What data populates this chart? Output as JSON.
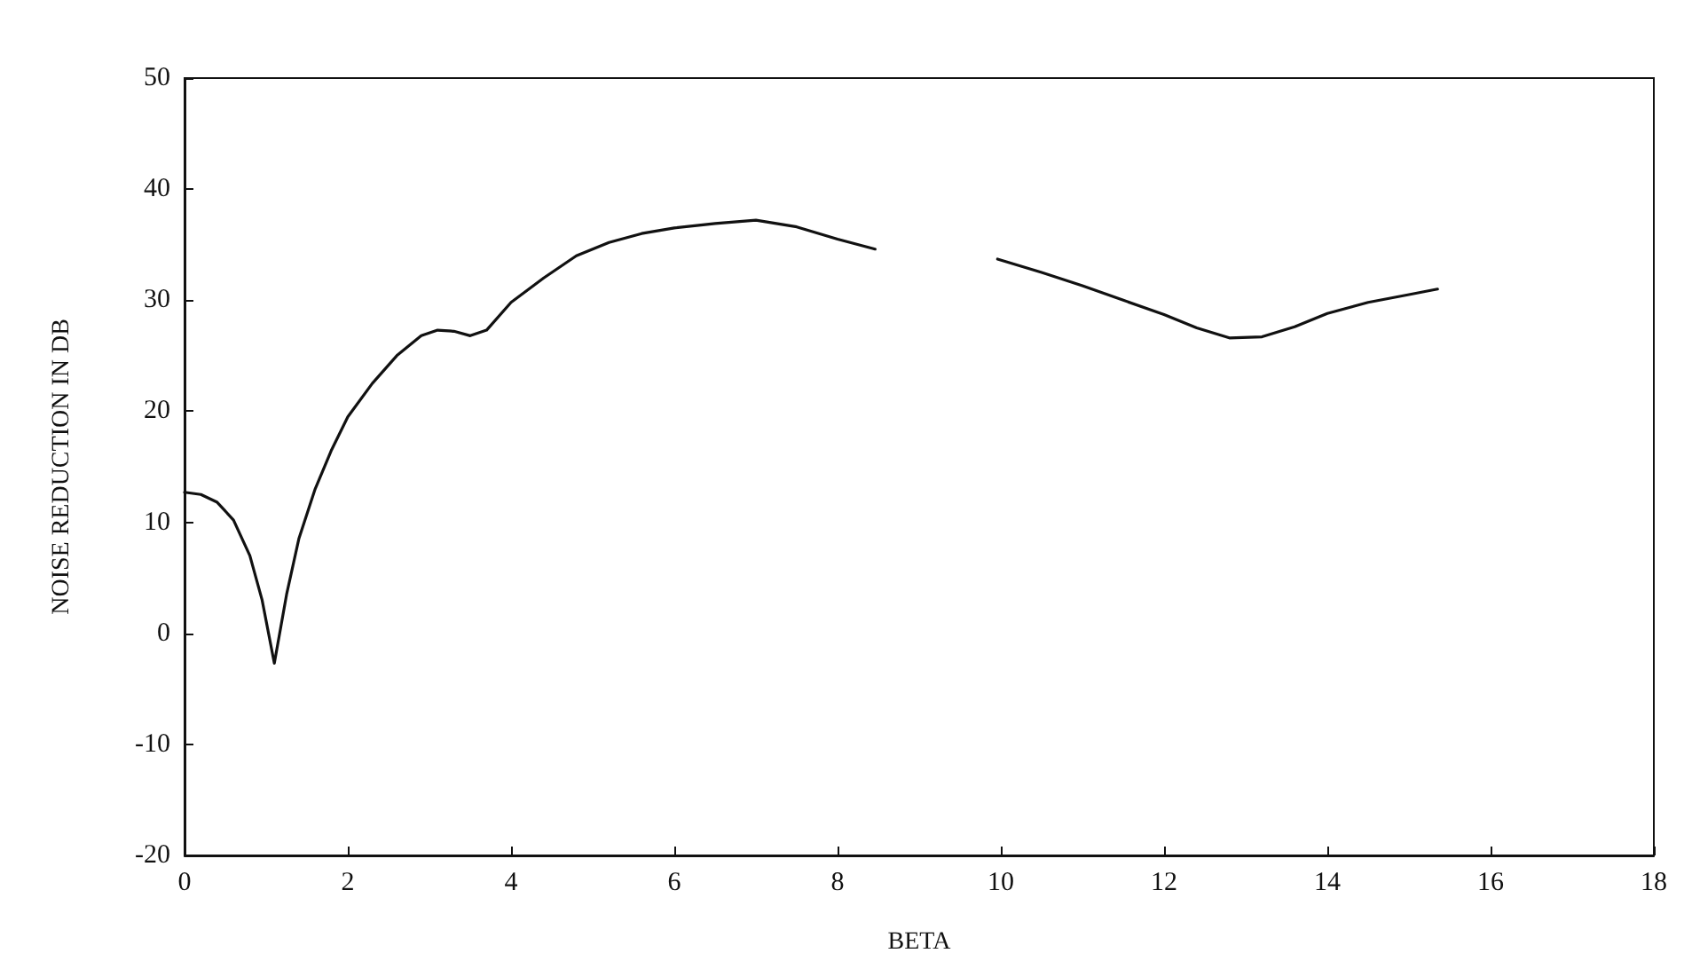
{
  "chart_data": {
    "type": "line",
    "xlabel": "BETA",
    "ylabel": "NOISE REDUCTION IN DB",
    "x": [
      0,
      0.2,
      0.4,
      0.6,
      0.8,
      0.95,
      1.1,
      1.25,
      1.4,
      1.6,
      1.8,
      2.0,
      2.3,
      2.6,
      2.9,
      3.1,
      3.3,
      3.5,
      3.7,
      4.0,
      4.4,
      4.8,
      5.2,
      5.6,
      6.0,
      6.5,
      7.0,
      7.5,
      8.0,
      8.46,
      9.2,
      9.96,
      10.5,
      11.0,
      11.5,
      12.0,
      12.4,
      12.8,
      13.2,
      13.6,
      14.0,
      14.5,
      15.0,
      15.35
    ],
    "series": [
      {
        "color": "#111111",
        "values": [
          12.7,
          12.5,
          11.8,
          10.2,
          7,
          3,
          -2.7,
          3.5,
          8.5,
          13,
          16.5,
          19.5,
          22.5,
          25,
          26.8,
          27.3,
          27.2,
          26.8,
          27.3,
          29.8,
          32,
          34,
          35.2,
          36,
          36.5,
          36.9,
          37.2,
          36.6,
          35.5,
          34.6,
          null,
          33.7,
          32.5,
          31.3,
          30,
          28.7,
          27.5,
          26.6,
          26.7,
          27.6,
          28.8,
          29.8,
          30.5,
          31
        ]
      }
    ],
    "xlim": [
      0,
      18
    ],
    "xticks": [
      0,
      2,
      4,
      6,
      8,
      10,
      12,
      14,
      16,
      18
    ],
    "ylim": [
      -20,
      50
    ],
    "yticks": [
      -20,
      -10,
      0,
      10,
      20,
      30,
      40,
      50
    ],
    "grid": false,
    "marker": "none",
    "line_style": "solid"
  }
}
